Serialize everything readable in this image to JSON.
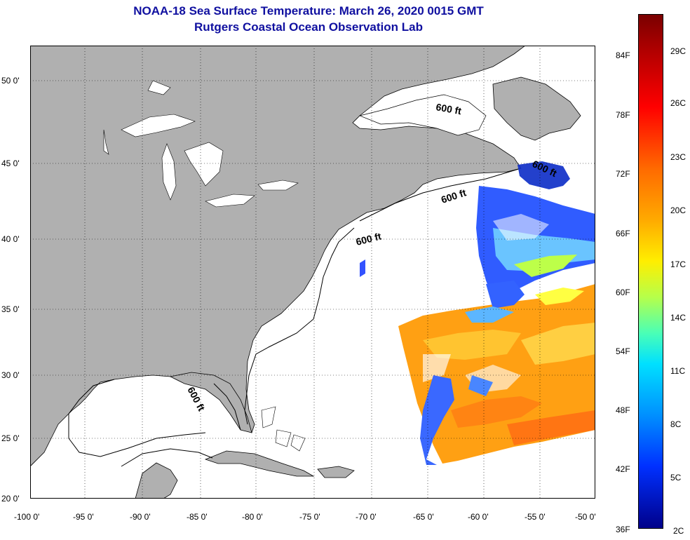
{
  "title": {
    "line1": "NOAA-18 Sea Surface Temperature:  March 26, 2020 0015 GMT",
    "line2": "Rutgers Coastal Ocean Observation Lab"
  },
  "axes": {
    "lat_labels": [
      "50 0'",
      "45 0'",
      "40 0'",
      "35 0'",
      "30 0'",
      "25 0'",
      "20 0'"
    ],
    "lon_labels": [
      "-100 0'",
      "-95 0'",
      "-90 0'",
      "-85 0'",
      "-80 0'",
      "-75 0'",
      "-70 0'",
      "-65 0'",
      "-60 0'",
      "-55 0'",
      "-50 0'"
    ]
  },
  "contour_labels": {
    "c1": "600 ft",
    "c2": "600 ft",
    "c3": "600 ft",
    "c4": "600 ft",
    "c5": "600 ft"
  },
  "colorbar": {
    "fahrenheit": [
      "84F",
      "78F",
      "72F",
      "66F",
      "60F",
      "54F",
      "48F",
      "42F",
      "36F"
    ],
    "celsius": [
      "29C",
      "26C",
      "23C",
      "20C",
      "17C",
      "14C",
      "11C",
      "8C",
      "5C",
      "2C"
    ]
  },
  "colors": {
    "land": "#b0b0b0",
    "title": "#1010a0"
  }
}
